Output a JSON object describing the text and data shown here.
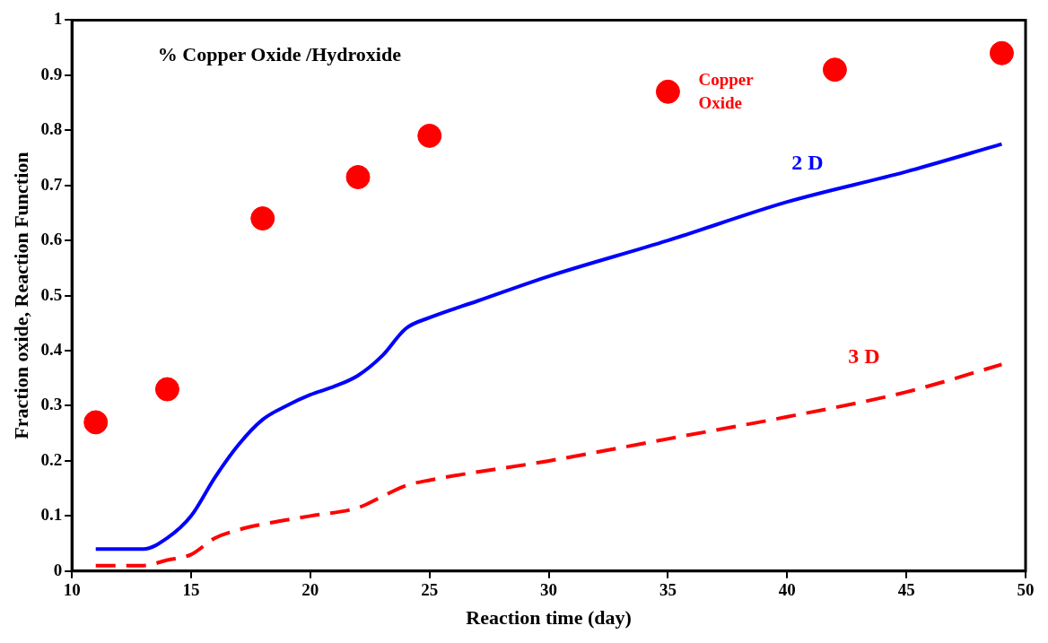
{
  "chart_data": {
    "type": "line",
    "title": "% Copper Oxide /Hydroxide",
    "xlabel": "Reaction time (day)",
    "ylabel": "Fraction oxide, Reaction Function",
    "xlim": [
      10,
      50
    ],
    "xticks": [
      10,
      15,
      20,
      25,
      30,
      35,
      40,
      45,
      50
    ],
    "ylim": [
      0,
      1
    ],
    "yticks": [
      0,
      0.1,
      0.2,
      0.3,
      0.4,
      0.5,
      0.6,
      0.7,
      0.8,
      0.9,
      1
    ],
    "grid": false,
    "legend": false,
    "series": [
      {
        "name": "Copper Oxide",
        "type": "scatter",
        "marker": "circle",
        "color": "#ff0000",
        "x": [
          11,
          14,
          18,
          22,
          25,
          35,
          42,
          49
        ],
        "values": [
          0.27,
          0.33,
          0.64,
          0.715,
          0.79,
          0.87,
          0.91,
          0.94
        ]
      },
      {
        "name": "2 D",
        "line_style": "solid",
        "marker": "none",
        "color": "#0000ff",
        "x": [
          11,
          12,
          13,
          14,
          15,
          16,
          17,
          18,
          19,
          20,
          21,
          22,
          23,
          24,
          25,
          27,
          30,
          35,
          40,
          45,
          49
        ],
        "values": [
          0.04,
          0.04,
          0.04,
          0.06,
          0.1,
          0.17,
          0.23,
          0.275,
          0.3,
          0.32,
          0.335,
          0.355,
          0.39,
          0.44,
          0.46,
          0.49,
          0.535,
          0.6,
          0.67,
          0.725,
          0.775
        ]
      },
      {
        "name": "3 D",
        "line_style": "dashed",
        "marker": "none",
        "color": "#ff0000",
        "x": [
          11,
          13,
          14,
          15,
          16,
          17,
          18,
          20,
          22,
          23,
          24,
          25,
          30,
          35,
          40,
          45,
          49
        ],
        "values": [
          0.01,
          0.01,
          0.02,
          0.03,
          0.06,
          0.075,
          0.085,
          0.1,
          0.115,
          0.135,
          0.155,
          0.165,
          0.2,
          0.24,
          0.28,
          0.325,
          0.375
        ]
      }
    ]
  }
}
